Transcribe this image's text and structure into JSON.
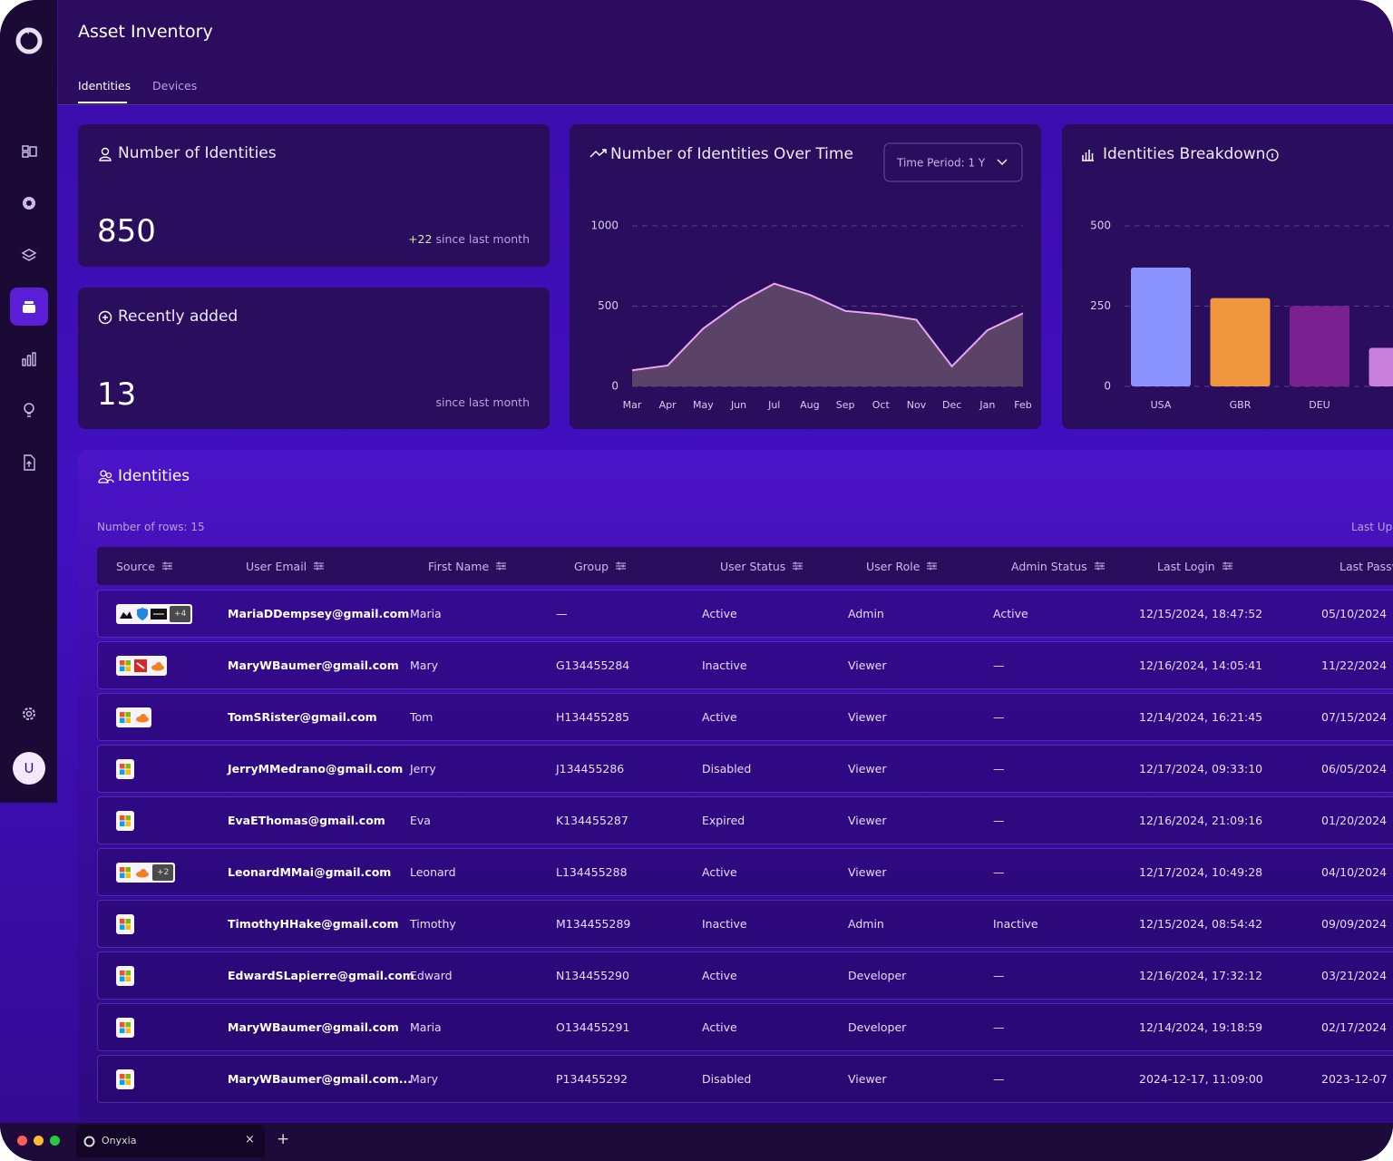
{
  "header": {
    "title": "Asset Inventory",
    "tabs": [
      "Identities",
      "Devices"
    ]
  },
  "sidebar": {
    "avatar": "U"
  },
  "cards": [
    {
      "title": "Number of Identities",
      "value": "850",
      "delta": "+22",
      "note": "since last month"
    },
    {
      "title": "Recently added",
      "value": "13",
      "note": "since last month"
    }
  ],
  "chart_data": [
    {
      "type": "area",
      "title": "Number of Identities Over Time",
      "control": "Time Period: 1 Y",
      "categories": [
        "Mar",
        "Apr",
        "May",
        "Jun",
        "Jul",
        "Aug",
        "Sep",
        "Oct",
        "Nov",
        "Dec",
        "Jan",
        "Feb"
      ],
      "values": [
        100,
        130,
        360,
        520,
        640,
        570,
        470,
        450,
        415,
        125,
        350,
        455
      ],
      "color": "#e9a5f5",
      "ylim": [
        0,
        1000
      ],
      "yticks": [
        0,
        500,
        1000
      ],
      "grid": true
    },
    {
      "type": "bar",
      "title": "Identities Breakdown",
      "categories": [
        "USA",
        "GBR",
        "DEU",
        null
      ],
      "values": [
        370,
        275,
        250,
        120
      ],
      "colors": [
        "#8b93ff",
        "#f0963f",
        "#7a2090",
        "#c77fd9"
      ],
      "ylim": [
        0,
        500
      ],
      "yticks": [
        0,
        250,
        500
      ],
      "grid": true
    }
  ],
  "table": {
    "title": "Identities",
    "row_count": "Number of rows: 15",
    "updated": "Last Updated",
    "columns": [
      "Source",
      "User Email",
      "First Name",
      "Group",
      "User Status",
      "User Role",
      "Admin Status",
      "Last Login",
      "Last Password"
    ],
    "rows": [
      {
        "badge": "+4",
        "cells": [
          "MariaDDempsey@gmail.com",
          "Maria",
          "—",
          "Active",
          "Admin",
          "Active",
          "12/15/2024, 18:47:52",
          "05/10/2024"
        ]
      },
      {
        "cells": [
          "MaryWBaumer@gmail.com",
          "Mary",
          "G134455284",
          "Inactive",
          "Viewer",
          "—",
          "12/16/2024, 14:05:41",
          "11/22/2024"
        ]
      },
      {
        "cells": [
          "TomSRister@gmail.com",
          "Tom",
          "H134455285",
          "Active",
          "Viewer",
          "—",
          "12/14/2024, 16:21:45",
          "07/15/2024"
        ]
      },
      {
        "cells": [
          "JerryMMedrano@gmail.com",
          "Jerry",
          "J134455286",
          "Disabled",
          "Viewer",
          "—",
          "12/17/2024, 09:33:10",
          "06/05/2024"
        ]
      },
      {
        "cells": [
          "EvaEThomas@gmail.com",
          "Eva",
          "K134455287",
          "Expired",
          "Viewer",
          "—",
          "12/16/2024, 21:09:16",
          "01/20/2024"
        ]
      },
      {
        "badge": "+2",
        "cells": [
          "LeonardMMai@gmail.com",
          "Leonard",
          "L134455288",
          "Active",
          "Viewer",
          "—",
          "12/17/2024, 10:49:28",
          "04/10/2024"
        ]
      },
      {
        "cells": [
          "TimothyHHake@gmail.com",
          "Timothy",
          "M134455289",
          "Inactive",
          "Admin",
          "Inactive",
          "12/15/2024, 08:54:42",
          "09/09/2024"
        ]
      },
      {
        "cells": [
          "EdwardSLapierre@gmail.com",
          "Edward",
          "N134455290",
          "Active",
          "Developer",
          "—",
          "12/16/2024, 17:32:12",
          "03/21/2024"
        ]
      },
      {
        "cells": [
          "MaryWBaumer@gmail.com",
          "Maria",
          "O134455291",
          "Active",
          "Developer",
          "—",
          "12/14/2024, 19:18:59",
          "02/17/2024"
        ]
      },
      {
        "cells": [
          "MaryWBaumer@gmail.com...",
          "Mary",
          "P134455292",
          "Disabled",
          "Viewer",
          "—",
          "2024-12-17, 11:09:00",
          "2023-12-07"
        ]
      }
    ]
  },
  "browser": {
    "tab": "Onyxia",
    "close": "×",
    "new_tab": "+"
  }
}
